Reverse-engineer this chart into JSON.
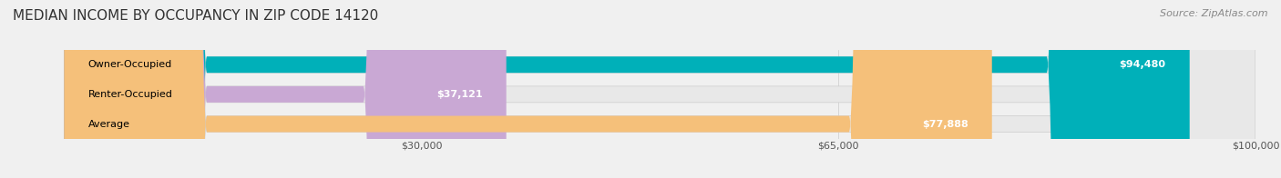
{
  "title": "MEDIAN INCOME BY OCCUPANCY IN ZIP CODE 14120",
  "source": "Source: ZipAtlas.com",
  "categories": [
    "Owner-Occupied",
    "Renter-Occupied",
    "Average"
  ],
  "values": [
    94480,
    37121,
    77888
  ],
  "labels": [
    "$94,480",
    "$37,121",
    "$77,888"
  ],
  "bar_colors": [
    "#00b0b9",
    "#c9a8d4",
    "#f5c07a"
  ],
  "bar_edge_colors": [
    "#00b0b9",
    "#c9a8d4",
    "#f5c07a"
  ],
  "x_max": 100000,
  "x_ticks": [
    30000,
    65000,
    100000
  ],
  "x_tick_labels": [
    "$30,000",
    "$65,000",
    "$100,000"
  ],
  "background_color": "#f0f0f0",
  "bar_bg_color": "#e8e8e8",
  "title_fontsize": 11,
  "source_fontsize": 8,
  "label_fontsize": 8,
  "tick_fontsize": 8
}
